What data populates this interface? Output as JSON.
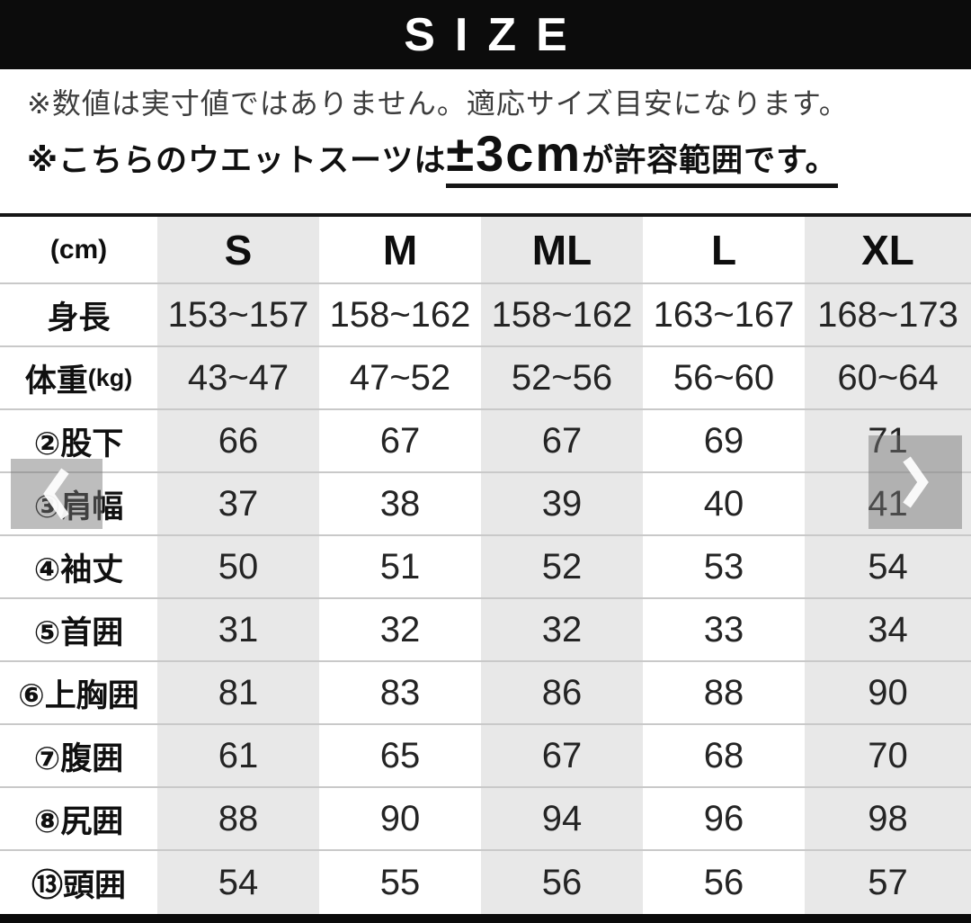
{
  "header": {
    "title": "SIZE",
    "background_color": "#0c0c0c",
    "text_color": "#ffffff"
  },
  "notes": {
    "line1": "※数値は実寸値ではありません。適応サイズ目安になります。",
    "line2_prefix": "※こちらのウエットスーツは",
    "line2_highlight": "±3cm",
    "line2_suffix": "が許容範囲です。"
  },
  "carousel": {
    "prev_icon": "chevron-left",
    "next_icon": "chevron-right"
  },
  "chart_data": {
    "type": "table",
    "title": "SIZE",
    "unit_label": "(cm)",
    "columns": [
      "S",
      "M",
      "ML",
      "L",
      "XL"
    ],
    "rows": [
      {
        "label": "身長",
        "label_small": "",
        "values": [
          "153~157",
          "158~162",
          "158~162",
          "163~167",
          "168~173"
        ]
      },
      {
        "label": "体重",
        "label_small": "(kg)",
        "values": [
          "43~47",
          "47~52",
          "52~56",
          "56~60",
          "60~64"
        ]
      },
      {
        "label": "②股下",
        "label_small": "",
        "values": [
          "66",
          "67",
          "67",
          "69",
          "71"
        ]
      },
      {
        "label": "③肩幅",
        "label_small": "",
        "values": [
          "37",
          "38",
          "39",
          "40",
          "41"
        ]
      },
      {
        "label": "④袖丈",
        "label_small": "",
        "values": [
          "50",
          "51",
          "52",
          "53",
          "54"
        ]
      },
      {
        "label": "⑤首囲",
        "label_small": "",
        "values": [
          "31",
          "32",
          "32",
          "33",
          "34"
        ]
      },
      {
        "label": "⑥上胸囲",
        "label_small": "",
        "values": [
          "81",
          "83",
          "86",
          "88",
          "90"
        ]
      },
      {
        "label": "⑦腹囲",
        "label_small": "",
        "values": [
          "61",
          "65",
          "67",
          "68",
          "70"
        ]
      },
      {
        "label": "⑧尻囲",
        "label_small": "",
        "values": [
          "88",
          "90",
          "94",
          "96",
          "98"
        ]
      },
      {
        "label": "⑬頭囲",
        "label_small": "",
        "values": [
          "54",
          "55",
          "56",
          "56",
          "57"
        ]
      }
    ],
    "stripe_color": "#e8e8e8",
    "striped_columns": [
      "S",
      "ML",
      "XL"
    ]
  }
}
